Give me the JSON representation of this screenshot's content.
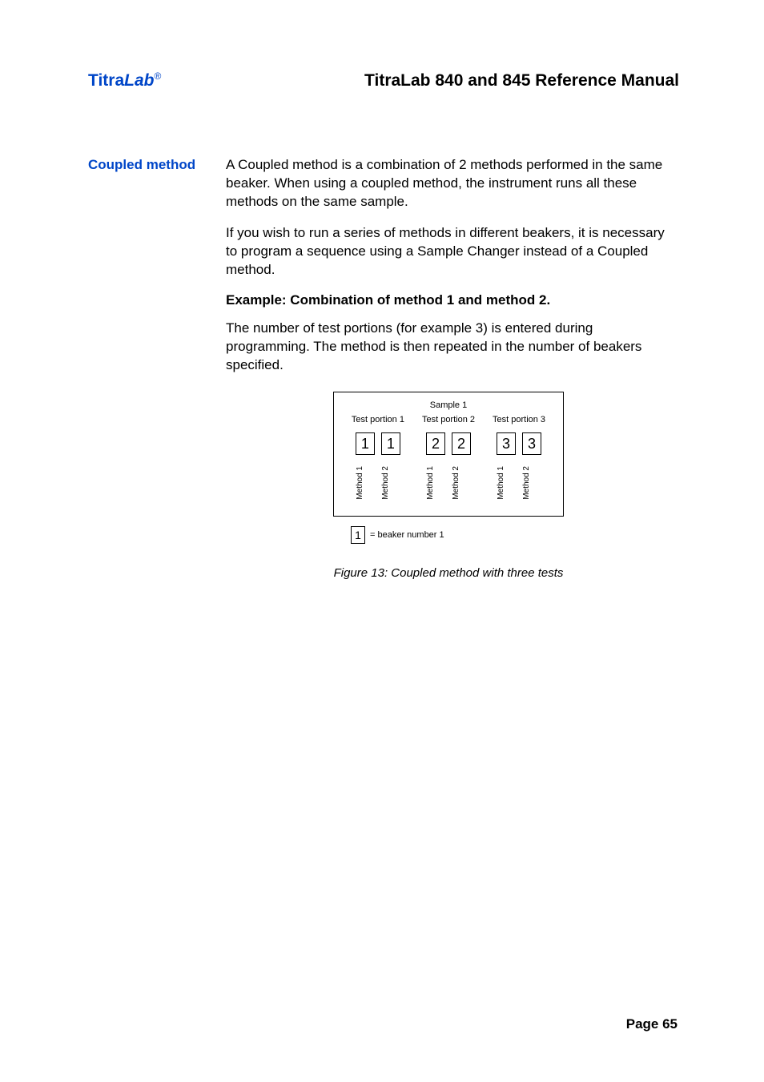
{
  "header": {
    "brand_prefix": "Titra",
    "brand_suffix": "Lab",
    "brand_reg": "®",
    "doc_title": "TitraLab 840 and 845 Reference Manual"
  },
  "sidebar": {
    "section_heading": "Coupled method"
  },
  "body": {
    "p1": "A Coupled method is a combination of 2 methods performed in the same beaker. When using a coupled method, the instrument runs all these methods on the same sample.",
    "p2": "If you wish to run a series of methods in different beakers, it is necessary to program a sequence using a Sample Changer instead of a Coupled method.",
    "bold": "Example: Combination of method 1 and method 2.",
    "p3": "The number of test portions (for example 3) is entered during programming. The method is then repeated in the number of beakers specified."
  },
  "figure": {
    "sample_title": "Sample 1",
    "portions": [
      {
        "label": "Test portion 1",
        "boxes": [
          "1",
          "1"
        ],
        "methods": [
          "Method 1",
          "Method 2"
        ]
      },
      {
        "label": "Test portion 2",
        "boxes": [
          "2",
          "2"
        ],
        "methods": [
          "Method 1",
          "Method 2"
        ]
      },
      {
        "label": "Test portion 3",
        "boxes": [
          "3",
          "3"
        ],
        "methods": [
          "Method 1",
          "Method 2"
        ]
      }
    ],
    "legend_box": "1",
    "legend_text": "= beaker number 1",
    "caption": "Figure 13: Coupled method with three tests"
  },
  "footer": {
    "page_label": "Page 65"
  },
  "colors": {
    "brand_blue": "#0046c8",
    "text": "#000000",
    "background": "#ffffff",
    "border": "#000000"
  },
  "typography": {
    "body_fontsize_pt": 13,
    "heading_fontsize_pt": 13,
    "header_fontsize_pt": 16,
    "figure_small_fontsize_pt": 8,
    "font_family": "Arial, Helvetica, sans-serif"
  }
}
